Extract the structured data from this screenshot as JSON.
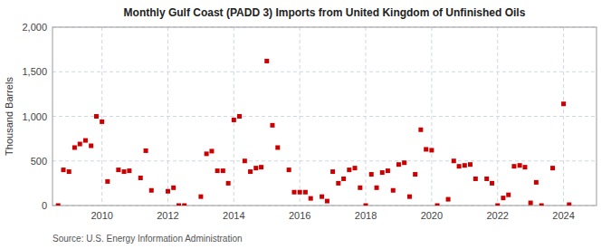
{
  "chart_data": {
    "type": "scatter",
    "title": "Monthly Gulf Coast (PADD 3) Imports from United Kingdom of Unfinished Oils",
    "y_label": "Thousand Barrels",
    "source": "Source: U.S. Energy Information Administration",
    "color": "#cc0000",
    "marker": "square",
    "grid": true,
    "xlim": [
      2008.5,
      2025.0
    ],
    "xticks": [
      2010,
      2012,
      2014,
      2016,
      2018,
      2020,
      2022,
      2024
    ],
    "ylim": [
      0,
      2000
    ],
    "yticks": [
      0,
      500,
      {
        "value": 1000,
        "label": "1,000"
      },
      {
        "value": 1500,
        "label": "1,500"
      },
      {
        "value": 2000,
        "label": "2,000"
      }
    ],
    "x": [
      2008.67,
      2008.83,
      2009.0,
      2009.17,
      2009.33,
      2009.5,
      2009.67,
      2009.83,
      2010.0,
      2010.17,
      2010.5,
      2010.67,
      2010.83,
      2011.17,
      2011.33,
      2011.5,
      2012.0,
      2012.17,
      2012.33,
      2012.5,
      2013.0,
      2013.17,
      2013.33,
      2013.5,
      2013.67,
      2013.83,
      2014.0,
      2014.17,
      2014.33,
      2014.5,
      2014.67,
      2014.83,
      2015.0,
      2015.17,
      2015.33,
      2015.67,
      2015.83,
      2016.0,
      2016.17,
      2016.33,
      2016.67,
      2016.83,
      2017.0,
      2017.17,
      2017.33,
      2017.5,
      2017.67,
      2017.83,
      2018.0,
      2018.17,
      2018.33,
      2018.5,
      2018.67,
      2018.83,
      2019.0,
      2019.17,
      2019.33,
      2019.5,
      2019.67,
      2019.83,
      2020.0,
      2020.17,
      2020.5,
      2020.67,
      2020.83,
      2021.0,
      2021.17,
      2021.33,
      2021.67,
      2021.83,
      2022.0,
      2022.17,
      2022.33,
      2022.5,
      2022.67,
      2022.83,
      2023.0,
      2023.17,
      2023.33,
      2023.67,
      2024.0,
      2024.17
    ],
    "values": [
      0,
      400,
      380,
      650,
      690,
      730,
      670,
      1000,
      940,
      270,
      400,
      380,
      390,
      310,
      615,
      170,
      160,
      200,
      0,
      0,
      100,
      580,
      610,
      390,
      390,
      250,
      960,
      1000,
      500,
      380,
      420,
      430,
      1620,
      900,
      650,
      400,
      150,
      150,
      150,
      80,
      100,
      50,
      380,
      250,
      300,
      400,
      420,
      200,
      0,
      350,
      200,
      370,
      390,
      170,
      460,
      480,
      100,
      350,
      850,
      630,
      620,
      0,
      70,
      500,
      440,
      450,
      460,
      300,
      300,
      250,
      0,
      85,
      120,
      440,
      450,
      430,
      30,
      260,
      0,
      420,
      1140,
      10
    ]
  }
}
